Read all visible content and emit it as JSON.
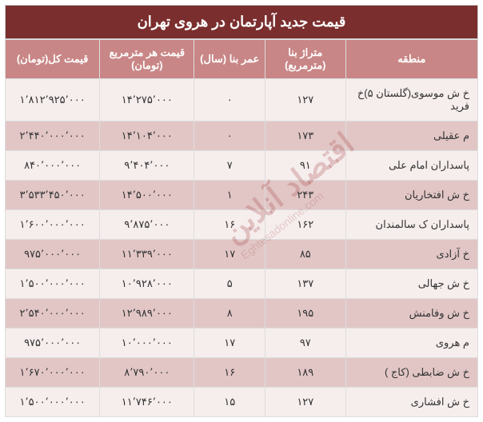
{
  "title": "قیمت جدید آپارتمان در هروی تهران",
  "columns": {
    "region": "منطقه",
    "area": "متراژ بنا (مترمربع)",
    "age": "عمر بنا (سال)",
    "price_per_m": "قیمت هر مترمربع (تومان)",
    "total_price": "قیمت کل(تومان)"
  },
  "rows": [
    {
      "region": "خ ش موسوی(گلستان ۵)خ فرید",
      "area": "۱۲۷",
      "age": "۰",
      "ppm": "۱۴٬۲۷۵٬۰۰۰",
      "total": "۱٬۸۱۲٬۹۲۵٬۰۰۰"
    },
    {
      "region": "م عقیلی",
      "area": "۱۷۳",
      "age": "۰",
      "ppm": "۱۴٬۱۰۴٬۰۰۰",
      "total": "۲٬۴۴۰٬۰۰۰٬۰۰۰"
    },
    {
      "region": "پاسداران امام علی",
      "area": "۹۱",
      "age": "۷",
      "ppm": "۹٬۴۰۴٬۰۰۰",
      "total": "۸۴۰٬۰۰۰٬۰۰۰"
    },
    {
      "region": "خ ش افتخاریان",
      "area": "۲۴۳",
      "age": "۱",
      "ppm": "۱۴٬۵۰۰٬۰۰۰",
      "total": "۳٬۵۳۳٬۴۵۰٬۰۰۰"
    },
    {
      "region": "پاسداران ک سالمندان",
      "area": "۱۶۲",
      "age": "۱۶",
      "ppm": "۹٬۸۷۵٬۰۰۰",
      "total": "۱٬۶۰۰٬۰۰۰٬۰۰۰"
    },
    {
      "region": "خ آزادی",
      "area": "۸۵",
      "age": "۱۷",
      "ppm": "۱۱٬۳۳۹٬۰۰۰",
      "total": "۹۷۵٬۰۰۰٬۰۰۰"
    },
    {
      "region": "خ ش جهالی",
      "area": "۱۳۷",
      "age": "۵",
      "ppm": "۱۰٬۹۲۸٬۰۰۰",
      "total": "۱٬۵۰۰٬۰۰۰٬۰۰۰"
    },
    {
      "region": "خ ش وفامنش",
      "area": "۱۹۵",
      "age": "۸",
      "ppm": "۱۲٬۹۸۹٬۰۰۰",
      "total": "۲٬۵۴۰٬۰۰۰٬۰۰۰"
    },
    {
      "region": "م هروی",
      "area": "۹۷",
      "age": "۱۷",
      "ppm": "۱۰٬۰۰۰٬۰۰۰",
      "total": "۹۷۵٬۰۰۰٬۰۰۰"
    },
    {
      "region": "خ ش ضابطی (کاج )",
      "area": "۱۸۹",
      "age": "۱۶",
      "ppm": "۸٬۷۹۰٬۰۰۰",
      "total": "۱٬۶۷۰٬۰۰۰٬۰۰۰"
    },
    {
      "region": "خ ش افشاری",
      "area": "۱۲۷",
      "age": "۱۵",
      "ppm": "۱۱٬۷۴۶٬۰۰۰",
      "total": "۱٬۵۰۰٬۰۰۰٬۰۰۰"
    }
  ],
  "watermark": "اقتصاد آنلاین",
  "watermark_url": "Eghtesadonline.com",
  "styles": {
    "title_bg": "#7b2e2e",
    "header_bg": "#c98686",
    "row_odd_bg": "#f6eded",
    "row_even_bg": "#e2c6c6",
    "text_color": "#333333",
    "header_text_color": "#ffffff",
    "border_color": "#dddddd",
    "title_fontsize": 18,
    "header_fontsize": 13,
    "cell_fontsize": 13
  }
}
